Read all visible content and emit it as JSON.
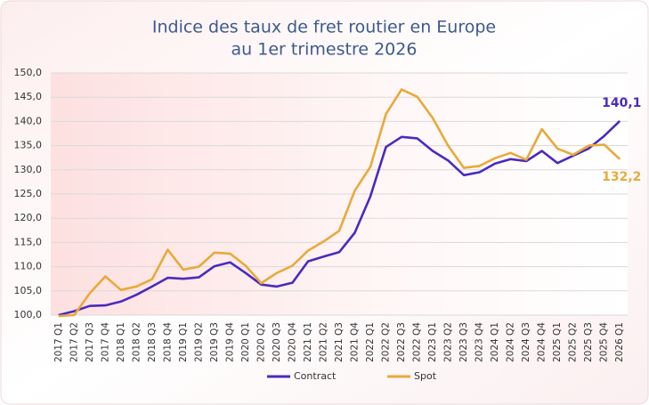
{
  "chart_data": {
    "type": "line",
    "title": [
      "Indice des taux de fret routier en Europe",
      "au 1er trimestre 2026"
    ],
    "categories": [
      "2017 Q1",
      "2017 Q2",
      "2017 Q3",
      "2017 Q4",
      "2018 Q1",
      "2018 Q2",
      "2018 Q3",
      "2018 Q4",
      "2019 Q1",
      "2019 Q2",
      "2019 Q3",
      "2019 Q4",
      "2020 Q1",
      "2020 Q2",
      "2020 Q3",
      "2020 Q4",
      "2021 Q1",
      "2021 Q2",
      "2021 Q3",
      "2021 Q4",
      "2022 Q1",
      "2022 Q2",
      "2022 Q3",
      "2022 Q4",
      "2023 Q1",
      "2023 Q2",
      "2023 Q3",
      "2023 Q4",
      "2024 Q1",
      "2024 Q2",
      "2024 Q3",
      "2024 Q4",
      "2025 Q1",
      "2025 Q2",
      "2025 Q3",
      "2025 Q4",
      "2026 Q1"
    ],
    "series": [
      {
        "name": "Contract",
        "color": "#4a2bbd",
        "values": [
          100.0,
          100.8,
          101.9,
          102.0,
          102.8,
          104.2,
          105.9,
          107.7,
          107.5,
          107.8,
          110.1,
          110.9,
          108.7,
          106.3,
          105.9,
          106.7,
          111.1,
          112.1,
          113.0,
          117.0,
          124.5,
          134.7,
          136.8,
          136.5,
          133.9,
          131.9,
          128.9,
          129.5,
          131.3,
          132.2,
          131.8,
          133.9,
          131.4,
          132.9,
          134.4,
          137.0,
          140.1
        ],
        "value_labels": [
          null,
          null,
          null,
          null,
          null,
          null,
          null,
          null,
          null,
          null,
          null,
          null,
          null,
          null,
          null,
          null,
          null,
          null,
          null,
          null,
          null,
          null,
          null,
          null,
          null,
          null,
          null,
          null,
          null,
          null,
          null,
          null,
          null,
          null,
          null,
          null,
          "140,1"
        ]
      },
      {
        "name": "Spot",
        "color": "#e9a93a",
        "values": [
          99.8,
          100.0,
          104.5,
          108.0,
          105.2,
          105.9,
          107.4,
          113.5,
          109.4,
          110.0,
          112.9,
          112.7,
          110.2,
          106.6,
          108.7,
          110.2,
          113.3,
          115.2,
          117.4,
          125.7,
          130.6,
          141.5,
          146.6,
          145.1,
          140.7,
          134.9,
          130.4,
          130.8,
          132.4,
          133.5,
          132.1,
          138.4,
          134.4,
          133.1,
          135.0,
          135.2,
          132.2
        ],
        "value_labels": [
          null,
          null,
          null,
          null,
          null,
          null,
          null,
          null,
          null,
          null,
          null,
          null,
          null,
          null,
          null,
          null,
          null,
          null,
          null,
          null,
          null,
          null,
          null,
          null,
          null,
          null,
          null,
          null,
          null,
          null,
          null,
          null,
          null,
          null,
          null,
          null,
          "132,2"
        ]
      }
    ],
    "ylim": [
      100,
      150
    ],
    "yticks": [
      {
        "value": 100,
        "label": "100,0"
      },
      {
        "value": 105,
        "label": "105,0"
      },
      {
        "value": 110,
        "label": "110,0"
      },
      {
        "value": 115,
        "label": "115,0"
      },
      {
        "value": 120,
        "label": "120,0"
      },
      {
        "value": 125,
        "label": "125,0"
      },
      {
        "value": 130,
        "label": "130,0"
      },
      {
        "value": 135,
        "label": "135,0"
      },
      {
        "value": 140,
        "label": "140,0"
      },
      {
        "value": 145,
        "label": "145,0"
      },
      {
        "value": 150,
        "label": "150,0"
      }
    ],
    "grid": true,
    "legend": "bottom"
  }
}
